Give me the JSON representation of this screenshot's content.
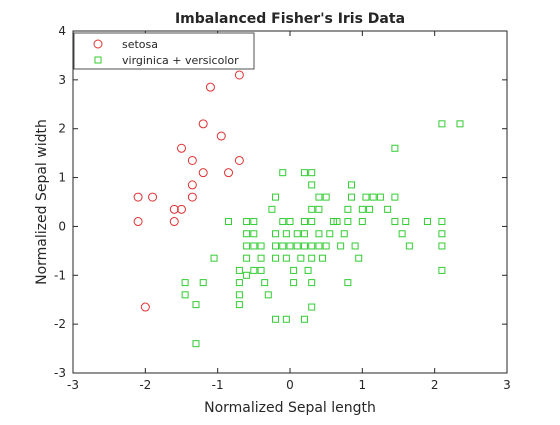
{
  "chart_data": {
    "type": "scatter",
    "title": "Imbalanced Fisher's Iris Data",
    "xlabel": "Normalized Sepal length",
    "ylabel": "Normalized Sepal width",
    "xlim": [
      -3,
      3
    ],
    "ylim": [
      -3,
      4
    ],
    "xticks": [
      "-3",
      "-2",
      "-1",
      "0",
      "1",
      "2",
      "3"
    ],
    "yticks": [
      "-3",
      "-2",
      "-1",
      "0",
      "1",
      "2",
      "3",
      "4"
    ],
    "grid": false,
    "legend_position": "top-left",
    "series": [
      {
        "name": "setosa",
        "marker": "circle",
        "color": "#e03030",
        "points": [
          [
            -2.1,
            0.6
          ],
          [
            -1.9,
            0.6
          ],
          [
            -2.1,
            0.1
          ],
          [
            -2.0,
            -1.65
          ],
          [
            -1.6,
            0.35
          ],
          [
            -1.5,
            0.35
          ],
          [
            -1.6,
            0.1
          ],
          [
            -1.5,
            1.6
          ],
          [
            -1.35,
            1.35
          ],
          [
            -1.35,
            0.85
          ],
          [
            -1.35,
            0.6
          ],
          [
            -1.2,
            1.1
          ],
          [
            -1.2,
            2.1
          ],
          [
            -1.1,
            2.85
          ],
          [
            -0.95,
            1.85
          ],
          [
            -0.85,
            1.1
          ],
          [
            -0.7,
            1.35
          ],
          [
            -0.7,
            3.1
          ]
        ]
      },
      {
        "name": "virginica + versicolor",
        "marker": "square",
        "color": "#33cc33",
        "points": [
          [
            -1.45,
            -1.15
          ],
          [
            -1.45,
            -1.4
          ],
          [
            -1.2,
            -1.15
          ],
          [
            -1.3,
            -1.6
          ],
          [
            -1.3,
            -2.4
          ],
          [
            -1.05,
            -0.65
          ],
          [
            -0.85,
            0.1
          ],
          [
            -0.7,
            -0.9
          ],
          [
            -0.7,
            -1.15
          ],
          [
            -0.7,
            -1.4
          ],
          [
            -0.7,
            -1.6
          ],
          [
            -0.6,
            0.1
          ],
          [
            -0.6,
            -0.15
          ],
          [
            -0.6,
            -0.4
          ],
          [
            -0.6,
            -0.65
          ],
          [
            -0.5,
            0.1
          ],
          [
            -0.5,
            -0.15
          ],
          [
            -0.5,
            -0.4
          ],
          [
            -0.5,
            -0.9
          ],
          [
            -0.4,
            -0.4
          ],
          [
            -0.4,
            -0.65
          ],
          [
            -0.4,
            -0.9
          ],
          [
            -0.35,
            -1.15
          ],
          [
            -0.3,
            -1.4
          ],
          [
            -0.25,
            0.35
          ],
          [
            -0.2,
            0.6
          ],
          [
            -0.2,
            -0.15
          ],
          [
            -0.2,
            -0.4
          ],
          [
            -0.2,
            -0.65
          ],
          [
            -0.1,
            1.1
          ],
          [
            -0.1,
            0.1
          ],
          [
            -0.1,
            -0.4
          ],
          [
            -0.05,
            -0.15
          ],
          [
            -0.05,
            -0.65
          ],
          [
            0,
            0.1
          ],
          [
            0,
            -0.4
          ],
          [
            0.05,
            -0.9
          ],
          [
            0.05,
            -1.15
          ],
          [
            0.1,
            -0.15
          ],
          [
            0.1,
            -0.4
          ],
          [
            0.15,
            -0.65
          ],
          [
            0.2,
            1.1
          ],
          [
            0.2,
            0.1
          ],
          [
            0.2,
            -0.15
          ],
          [
            0.2,
            -0.4
          ],
          [
            0.25,
            -0.9
          ],
          [
            0.3,
            1.1
          ],
          [
            0.3,
            0.85
          ],
          [
            0.3,
            0.35
          ],
          [
            0.3,
            0.1
          ],
          [
            0.3,
            -0.4
          ],
          [
            0.3,
            -0.65
          ],
          [
            0.3,
            -1.15
          ],
          [
            0.3,
            -1.65
          ],
          [
            0.4,
            0.6
          ],
          [
            0.4,
            0.35
          ],
          [
            0.4,
            -0.15
          ],
          [
            0.4,
            -0.4
          ],
          [
            0.45,
            -0.65
          ],
          [
            0.5,
            0.6
          ],
          [
            0.5,
            -0.4
          ],
          [
            0.55,
            -0.15
          ],
          [
            0.6,
            0.1
          ],
          [
            0.65,
            0.1
          ],
          [
            0.7,
            -0.4
          ],
          [
            0.75,
            -0.15
          ],
          [
            0.8,
            0.35
          ],
          [
            0.8,
            0.1
          ],
          [
            0.8,
            -1.15
          ],
          [
            0.85,
            0.85
          ],
          [
            0.85,
            0.6
          ],
          [
            0.9,
            -0.4
          ],
          [
            0.95,
            -0.65
          ],
          [
            1.0,
            0.35
          ],
          [
            1.0,
            0.1
          ],
          [
            1.05,
            0.6
          ],
          [
            1.1,
            0.35
          ],
          [
            1.15,
            0.6
          ],
          [
            1.25,
            0.6
          ],
          [
            1.35,
            0.35
          ],
          [
            1.45,
            0.6
          ],
          [
            1.45,
            1.6
          ],
          [
            1.45,
            0.1
          ],
          [
            1.55,
            -0.15
          ],
          [
            1.6,
            0.1
          ],
          [
            1.65,
            -0.4
          ],
          [
            1.9,
            0.1
          ],
          [
            2.1,
            0.1
          ],
          [
            2.1,
            -0.15
          ],
          [
            2.1,
            -0.4
          ],
          [
            2.1,
            -0.9
          ],
          [
            2.1,
            2.1
          ],
          [
            2.35,
            2.1
          ],
          [
            -0.2,
            -1.9
          ],
          [
            -0.05,
            -1.9
          ],
          [
            0.2,
            -1.9
          ],
          [
            -0.6,
            -1.0
          ]
        ]
      }
    ]
  }
}
